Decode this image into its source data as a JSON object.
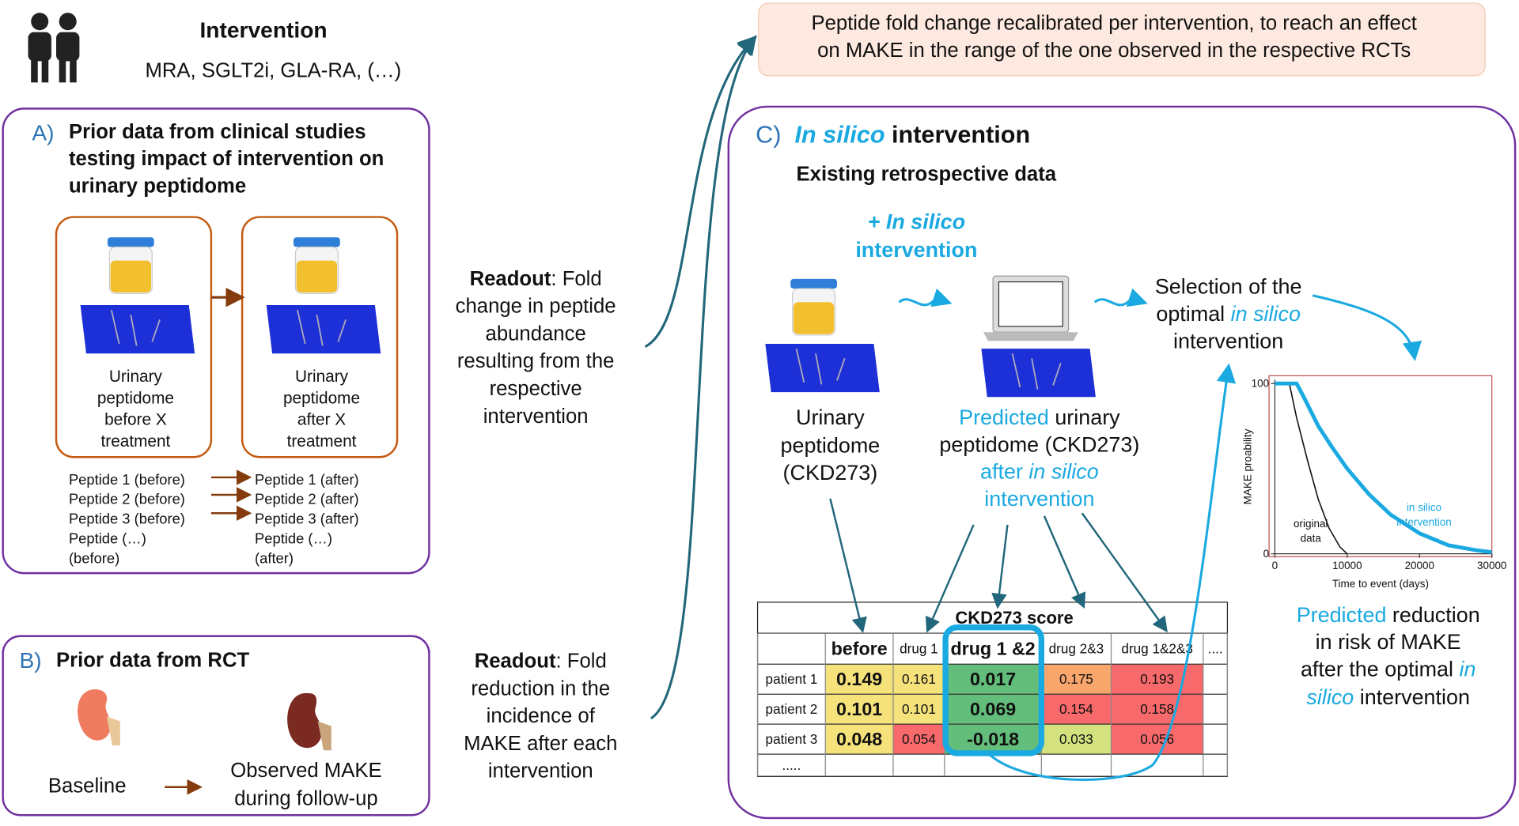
{
  "header": {
    "title": "Intervention",
    "subtitle": "MRA, SGLT2i, GLA-RA, (…)"
  },
  "note": [
    "Peptide fold change recalibrated per intervention, to reach an effect",
    "on MAKE  in the range of the one observed in the respective RCTs"
  ],
  "panel_a": {
    "letter": "A)",
    "title": [
      "Prior data from clinical studies",
      "testing impact of intervention on",
      "urinary peptidome"
    ],
    "before_label": [
      "Urinary",
      "peptidome",
      "before X",
      "treatment"
    ],
    "after_label": [
      "Urinary",
      "peptidome",
      "after X",
      "treatment"
    ],
    "peptides_before": [
      "Peptide 1 (before)",
      "Peptide 2 (before)",
      "Peptide 3 (before)",
      "Peptide (…)",
      "(before)"
    ],
    "peptides_after": [
      "Peptide 1 (after)",
      "Peptide 2 (after)",
      "Peptide 3 (after)",
      "Peptide (…)",
      "(after)"
    ]
  },
  "panel_b": {
    "letter": "B)",
    "title": "Prior data from RCT",
    "baseline": "Baseline",
    "observed": [
      "Observed MAKE",
      "during follow-up"
    ]
  },
  "readout_a": {
    "bold": "Readout",
    "lines": [
      ": Fold",
      "change in peptide",
      "abundance",
      "resulting from the",
      "respective",
      "intervention"
    ]
  },
  "readout_b": {
    "bold": "Readout",
    "lines": [
      ": Fold",
      "reduction  in the",
      "incidence of",
      "MAKE  after each",
      "intervention"
    ]
  },
  "panel_c": {
    "letter": "C)",
    "title_italic": "In silico",
    "title_rest": " intervention",
    "subtitle": "Existing retrospective data",
    "plus_label": [
      "+ In silico",
      "intervention"
    ],
    "urinary": [
      "Urinary",
      "peptidome",
      "(CKD273)"
    ],
    "predicted": {
      "cyan": "Predicted",
      "rest": " urinary",
      "line2": "peptidome (CKD273)",
      "line3_a": "after ",
      "line3_b": "in silico",
      "line4": "intervention"
    },
    "selection": {
      "line1": "Selection of the",
      "line2_a": "optimal ",
      "line2_b": "in silico",
      "line3": "intervention"
    },
    "reduction": {
      "cyan": "Predicted",
      "rest": " reduction",
      "line2": "in risk of MAKE",
      "line3_a": "after the optimal ",
      "line3_b": "in",
      "line4_a": "silico",
      "line4_b": " intervention"
    }
  },
  "table": {
    "title": "CKD273 score",
    "columns": [
      "before",
      "drug 1",
      "drug 1 &2",
      "drug 2&3",
      "drug 1&2&3",
      "...."
    ],
    "rows": [
      [
        "patient 1",
        "0.149",
        "0.161",
        "0.017",
        "0.175",
        "0.193"
      ],
      [
        "patient 2",
        "0.101",
        "0.101",
        "0.069",
        "0.154",
        "0.158"
      ],
      [
        "patient 3",
        "0.048",
        "0.054",
        "-0.018",
        "0.033",
        "0.056"
      ],
      [
        "....."
      ]
    ]
  },
  "survival_plot": {
    "ylabel": "MAKE proability",
    "xlabel": "Time to event (days)",
    "xlim": [
      0,
      30000
    ],
    "ylim": [
      0,
      100
    ],
    "xticks": [
      0,
      10000,
      20000,
      30000
    ],
    "yticks": [
      0,
      100
    ],
    "series": [
      {
        "color": "#111111",
        "x": [
          2000,
          3000,
          4500,
          6000,
          7500,
          9000,
          10000
        ],
        "values": [
          100,
          80,
          55,
          32,
          15,
          4,
          0
        ]
      },
      {
        "color": "#1aa9e0",
        "x": [
          0,
          3000,
          4000,
          6000,
          8000,
          10000,
          13000,
          16000,
          20000,
          24000,
          28000,
          30000
        ],
        "values": [
          100,
          100,
          92,
          75,
          62,
          50,
          35,
          23,
          12,
          5,
          2,
          1
        ]
      }
    ],
    "annotations": [
      [
        "original",
        "data"
      ],
      [
        "in silico",
        "intervention"
      ]
    ]
  }
}
